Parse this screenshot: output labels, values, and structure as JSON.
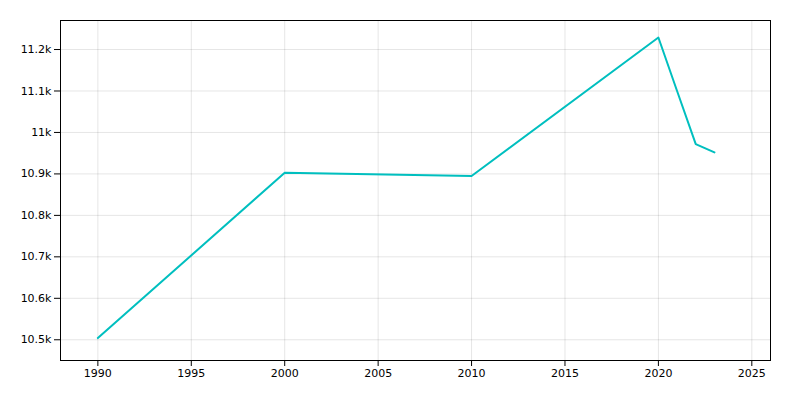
{
  "chart_data": {
    "type": "line",
    "x": [
      1990,
      2000,
      2010,
      2020,
      2021,
      2022,
      2023
    ],
    "values": [
      10504,
      10903,
      10895,
      11229,
      11100,
      10972,
      10952
    ],
    "color": "#00BFBF",
    "xlim": [
      1988,
      2026
    ],
    "ylim": [
      10450,
      11270
    ],
    "xticks": [
      1990,
      1995,
      2000,
      2005,
      2010,
      2015,
      2020,
      2025
    ],
    "yticks": [
      {
        "value": 10500,
        "label": "10.5k"
      },
      {
        "value": 10600,
        "label": "10.6k"
      },
      {
        "value": 10700,
        "label": "10.7k"
      },
      {
        "value": 10800,
        "label": "10.8k"
      },
      {
        "value": 10900,
        "label": "10.9k"
      },
      {
        "value": 11000,
        "label": "11k"
      },
      {
        "value": 11100,
        "label": "11.1k"
      },
      {
        "value": 11200,
        "label": "11.2k"
      }
    ],
    "grid": true
  }
}
